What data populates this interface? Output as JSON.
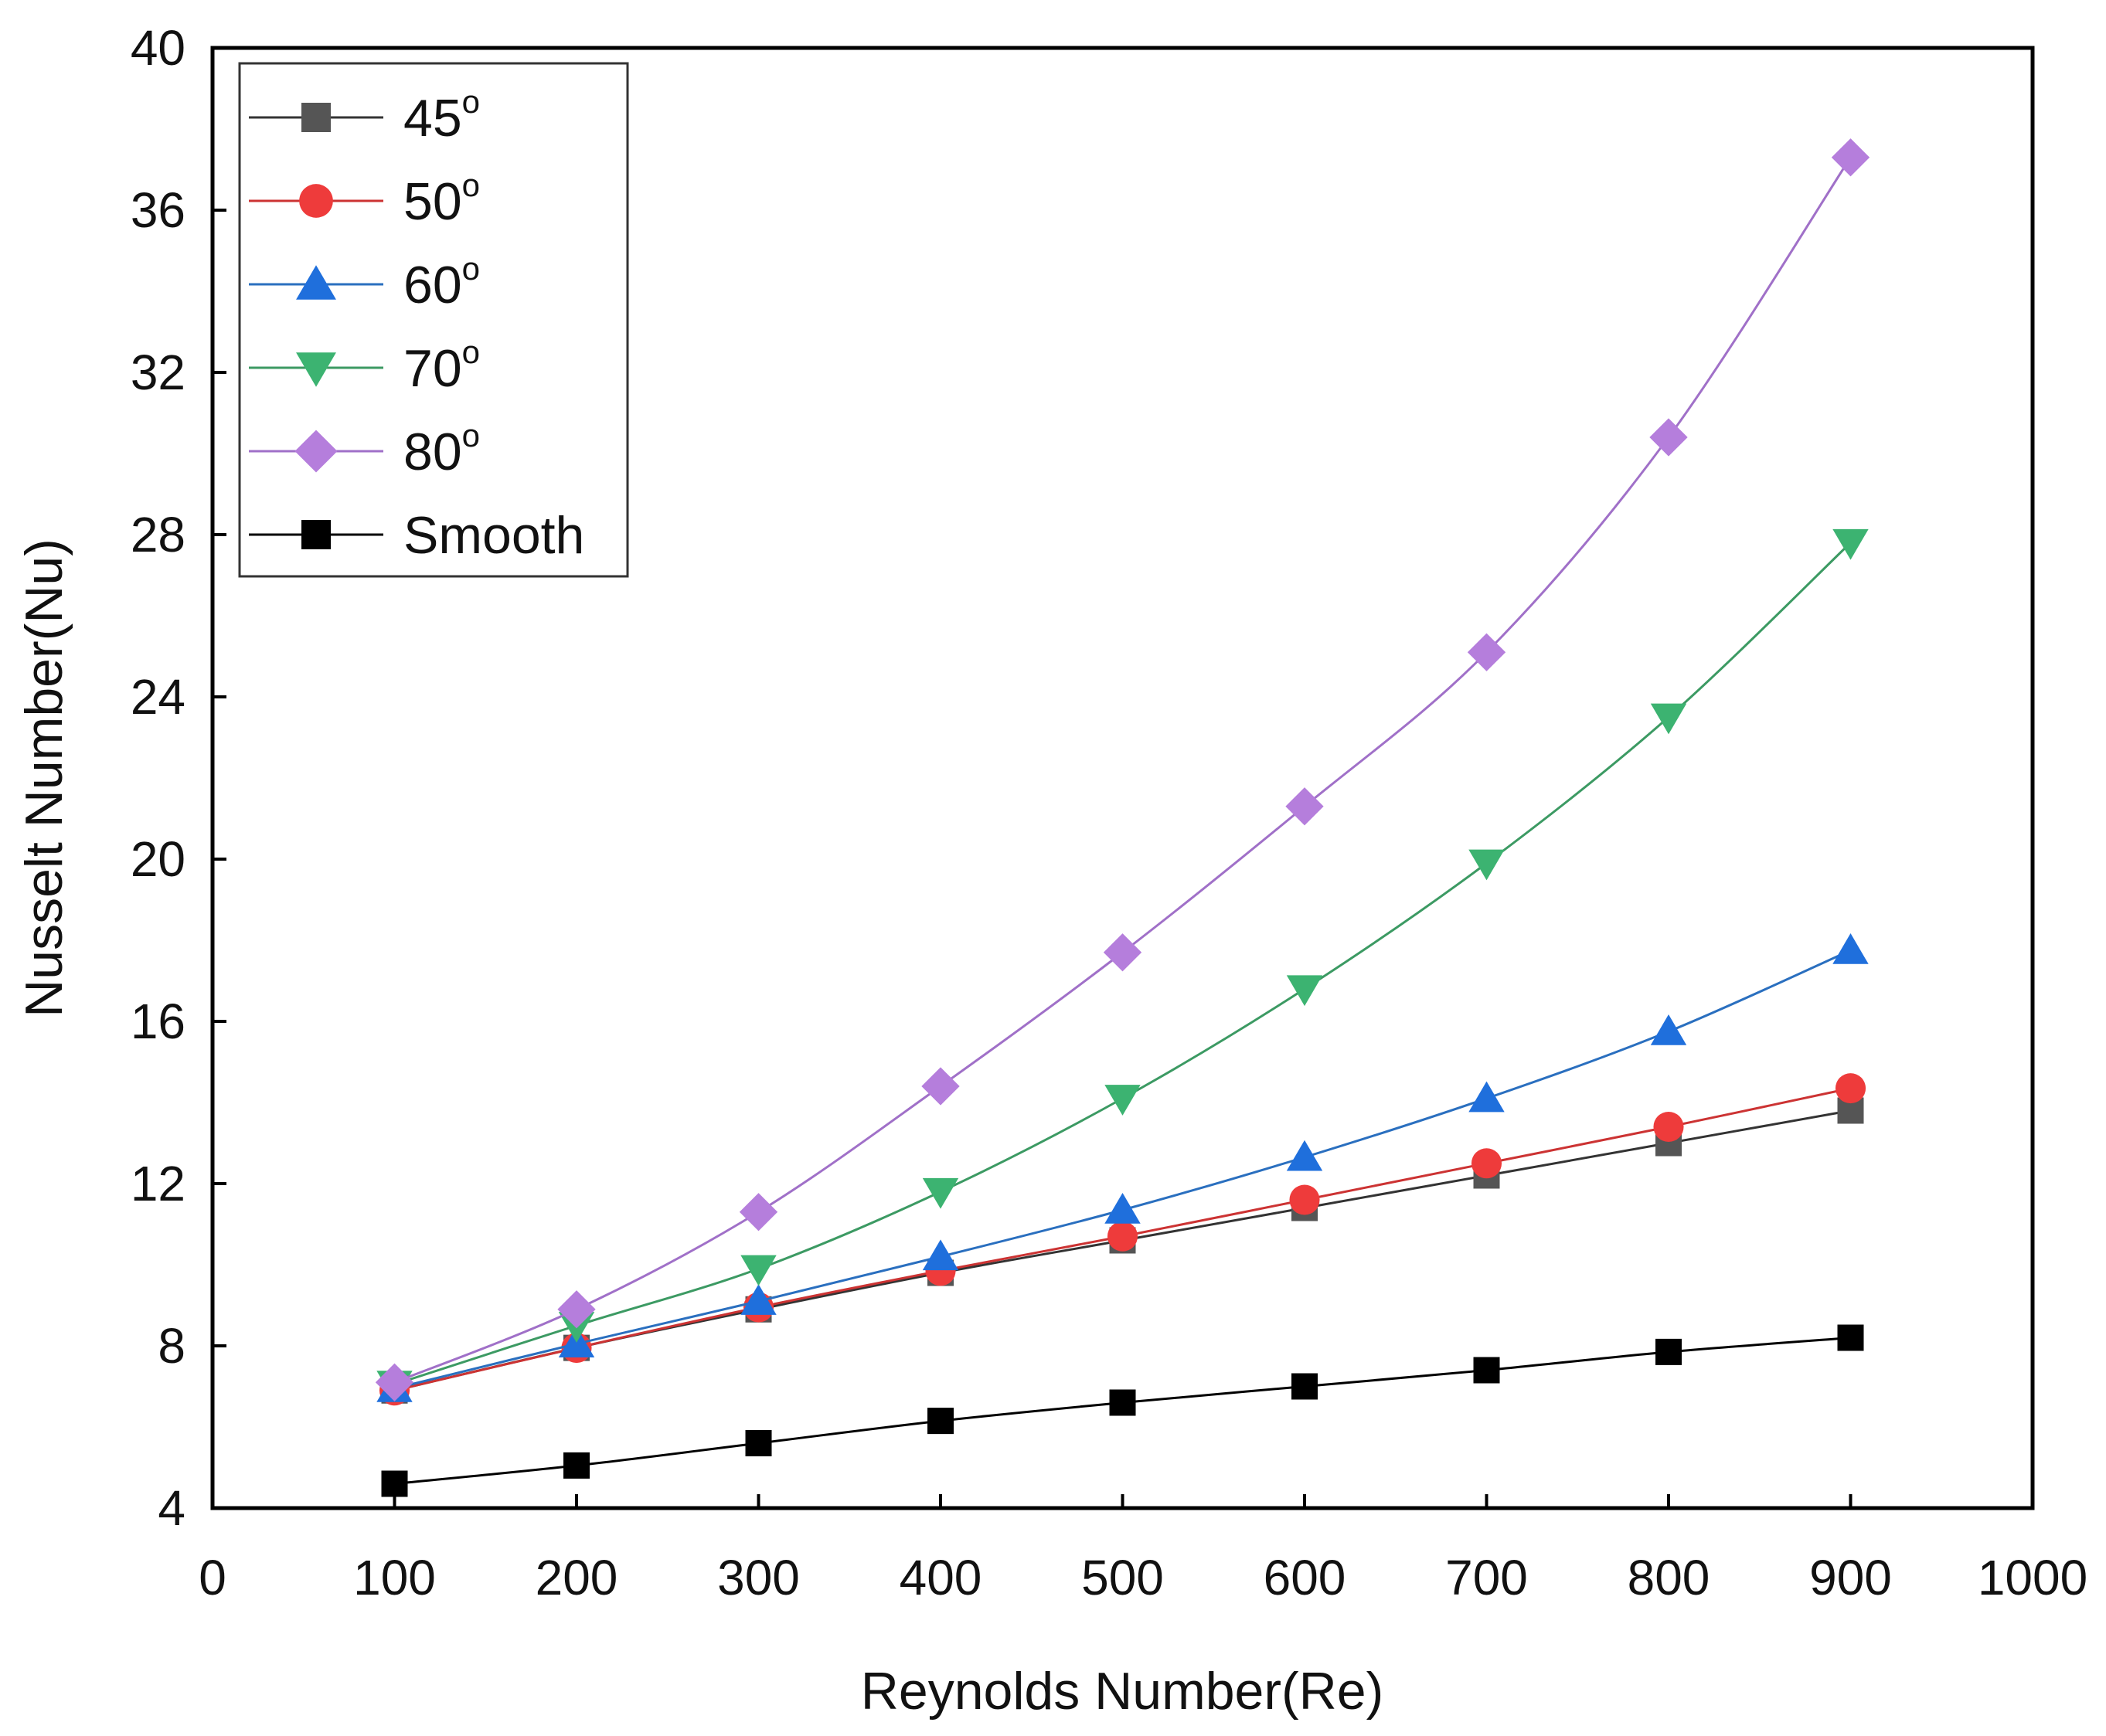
{
  "chart_data": {
    "type": "line",
    "xlabel": "Reynolds Number(Re)",
    "ylabel": "Nusselt Number(Nu)",
    "xlim": [
      0,
      1000
    ],
    "ylim": [
      4,
      40
    ],
    "xticks": [
      "0",
      "100",
      "200",
      "300",
      "400",
      "500",
      "600",
      "700",
      "800",
      "900",
      "1000"
    ],
    "yticks": [
      "4",
      "8",
      "12",
      "16",
      "20",
      "24",
      "28",
      "32",
      "36",
      "40"
    ],
    "grid": false,
    "legend_position": "top-left",
    "x": [
      100,
      200,
      300,
      400,
      500,
      600,
      700,
      800,
      900
    ],
    "series": [
      {
        "name": "45",
        "sup": "o",
        "marker": "square",
        "color": "#555555",
        "line_color": "#333333",
        "values": [
          6.9,
          7.95,
          8.9,
          9.8,
          10.6,
          11.4,
          12.2,
          13.0,
          13.8
        ]
      },
      {
        "name": "50",
        "sup": "o",
        "marker": "circle",
        "color": "#ee3b3b",
        "line_color": "#cc3333",
        "values": [
          6.9,
          7.95,
          8.95,
          9.85,
          10.7,
          11.6,
          12.5,
          13.4,
          14.35
        ]
      },
      {
        "name": "60",
        "sup": "o",
        "marker": "triangle-up",
        "color": "#1f6fdc",
        "line_color": "#2a6fbf",
        "values": [
          6.95,
          8.05,
          9.1,
          10.2,
          11.35,
          12.65,
          14.1,
          15.75,
          17.75
        ]
      },
      {
        "name": "70",
        "sup": "o",
        "marker": "triangle-down",
        "color": "#3cb371",
        "line_color": "#3c9a63",
        "values": [
          7.05,
          8.5,
          9.9,
          11.8,
          14.1,
          16.8,
          19.9,
          23.5,
          27.8
        ]
      },
      {
        "name": "80",
        "sup": "o",
        "marker": "diamond",
        "color": "#b57edc",
        "line_color": "#a070c8",
        "values": [
          7.1,
          8.9,
          11.3,
          14.4,
          17.7,
          21.3,
          25.1,
          30.4,
          37.3
        ]
      },
      {
        "name": "Smooth",
        "sup": "",
        "marker": "square",
        "color": "#000000",
        "line_color": "#000000",
        "values": [
          4.6,
          5.05,
          5.6,
          6.15,
          6.6,
          7.0,
          7.4,
          7.85,
          8.2
        ]
      }
    ]
  }
}
